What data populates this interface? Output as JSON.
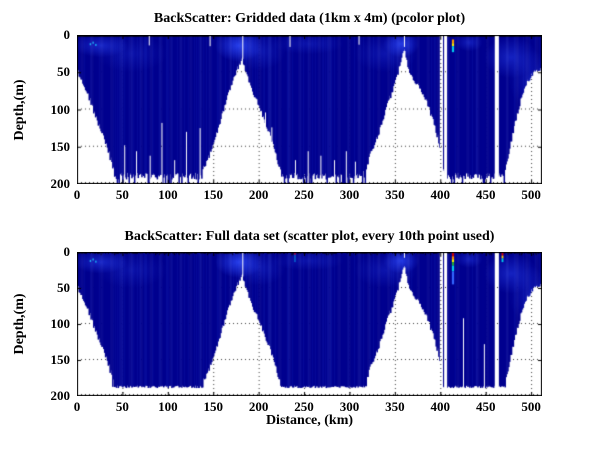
{
  "figure": {
    "background": "#ffffff"
  },
  "chart_data": {
    "plots": [
      {
        "name": "gridded",
        "type": "heatmap",
        "render_style": "pcolor",
        "title": "BackScatter: Gridded data (1km x 4m) (pcolor plot)",
        "xlabel": "",
        "ylabel": "Depth,(m)",
        "xlim": [
          0,
          512
        ],
        "ylim": [
          0,
          200
        ],
        "y_direction": "down",
        "xticks": [
          0,
          50,
          100,
          150,
          200,
          250,
          300,
          350,
          400,
          450,
          500
        ],
        "yticks": [
          0,
          50,
          100,
          150,
          200
        ],
        "grid": "dotted"
      },
      {
        "name": "full",
        "type": "scatter",
        "title": "BackScatter: Full data set (scatter plot, every 10th point used)",
        "xlabel": "Distance, (km)",
        "ylabel": "Depth,(m)",
        "xlim": [
          0,
          512
        ],
        "ylim": [
          0,
          200
        ],
        "y_direction": "down",
        "xticks": [
          0,
          50,
          100,
          150,
          200,
          250,
          300,
          350,
          400,
          450,
          500
        ],
        "yticks": [
          0,
          50,
          100,
          150,
          200
        ],
        "grid": "dotted"
      }
    ],
    "x_unit": "km",
    "y_unit": "m",
    "seafloor_profile_km_depth": [
      [
        0,
        46
      ],
      [
        3,
        55
      ],
      [
        6,
        60
      ],
      [
        10,
        72
      ],
      [
        14,
        86
      ],
      [
        18,
        100
      ],
      [
        22,
        114
      ],
      [
        26,
        127
      ],
      [
        30,
        140
      ],
      [
        34,
        154
      ],
      [
        38,
        170
      ],
      [
        42,
        186
      ],
      [
        45,
        193
      ],
      [
        48,
        190
      ],
      [
        60,
        191
      ],
      [
        75,
        189
      ],
      [
        90,
        192
      ],
      [
        105,
        190
      ],
      [
        120,
        191
      ],
      [
        136,
        190
      ],
      [
        140,
        178
      ],
      [
        144,
        166
      ],
      [
        148,
        155
      ],
      [
        152,
        140
      ],
      [
        156,
        124
      ],
      [
        160,
        107
      ],
      [
        164,
        90
      ],
      [
        168,
        74
      ],
      [
        172,
        60
      ],
      [
        176,
        47
      ],
      [
        179,
        38
      ],
      [
        182,
        32
      ],
      [
        184,
        40
      ],
      [
        187,
        52
      ],
      [
        190,
        62
      ],
      [
        193,
        72
      ],
      [
        196,
        82
      ],
      [
        200,
        93
      ],
      [
        204,
        105
      ],
      [
        208,
        118
      ],
      [
        212,
        132
      ],
      [
        216,
        147
      ],
      [
        220,
        163
      ],
      [
        223,
        178
      ],
      [
        226,
        190
      ],
      [
        240,
        191
      ],
      [
        260,
        190
      ],
      [
        280,
        192
      ],
      [
        300,
        190
      ],
      [
        313,
        191
      ],
      [
        317,
        182
      ],
      [
        321,
        168
      ],
      [
        325,
        155
      ],
      [
        329,
        142
      ],
      [
        333,
        128
      ],
      [
        337,
        112
      ],
      [
        341,
        97
      ],
      [
        345,
        83
      ],
      [
        349,
        68
      ],
      [
        353,
        52
      ],
      [
        356,
        38
      ],
      [
        359,
        22
      ],
      [
        360,
        16
      ],
      [
        362,
        26
      ],
      [
        365,
        42
      ],
      [
        368,
        52
      ],
      [
        371,
        58
      ],
      [
        374,
        64
      ],
      [
        378,
        72
      ],
      [
        382,
        82
      ],
      [
        386,
        93
      ],
      [
        390,
        106
      ],
      [
        394,
        122
      ],
      [
        398,
        140
      ],
      [
        401,
        158
      ],
      [
        403,
        172
      ],
      [
        405,
        190
      ],
      [
        408,
        191
      ],
      [
        420,
        190
      ],
      [
        435,
        191
      ],
      [
        450,
        190
      ],
      [
        458,
        191
      ],
      [
        465,
        192
      ],
      [
        469,
        190
      ],
      [
        472,
        176
      ],
      [
        476,
        155
      ],
      [
        480,
        132
      ],
      [
        484,
        110
      ],
      [
        488,
        90
      ],
      [
        492,
        74
      ],
      [
        496,
        62
      ],
      [
        500,
        55
      ],
      [
        503,
        50
      ],
      [
        506,
        47
      ],
      [
        509,
        50
      ],
      [
        512,
        44
      ]
    ],
    "basin_floor_depth_m": {
      "pcolor": 190,
      "scatter": 188
    },
    "data_gaps_km": [
      [
        399.5,
        403
      ],
      [
        404.2,
        407.5
      ],
      [
        460,
        464.5
      ]
    ],
    "dropout_columns": {
      "pcolor": [
        [
          52,
          148
        ],
        [
          65,
          156
        ],
        [
          80,
          162
        ],
        [
          93,
          118
        ],
        [
          107,
          168
        ],
        [
          120,
          130
        ],
        [
          135,
          125
        ],
        [
          207,
          104
        ],
        [
          214,
          124
        ],
        [
          240,
          168
        ],
        [
          254,
          156
        ],
        [
          268,
          162
        ],
        [
          283,
          168
        ],
        [
          296,
          156
        ],
        [
          306,
          170
        ],
        [
          482,
          116
        ]
      ],
      "scatter": [
        [
          425,
          92
        ],
        [
          448,
          128
        ]
      ]
    },
    "surface_gap_ticks_km": {
      "pcolor": [
        [
          79,
          14
        ],
        [
          146,
          15
        ],
        [
          234,
          16
        ],
        [
          310,
          13
        ],
        [
          182,
          32
        ],
        [
          360,
          16
        ]
      ],
      "scatter": [
        [
          182,
          34
        ],
        [
          360,
          8
        ]
      ]
    },
    "glow_patches": [
      [
        26,
        14,
        30,
        16,
        0.5
      ],
      [
        60,
        25,
        40,
        25,
        0.22
      ],
      [
        178,
        14,
        26,
        22,
        0.8
      ],
      [
        200,
        22,
        30,
        25,
        0.3
      ],
      [
        255,
        12,
        40,
        14,
        0.25
      ],
      [
        357,
        12,
        20,
        18,
        0.75
      ],
      [
        340,
        25,
        35,
        25,
        0.28
      ],
      [
        432,
        10,
        15,
        12,
        0.4
      ],
      [
        478,
        30,
        30,
        28,
        0.45
      ],
      [
        500,
        60,
        25,
        40,
        0.3
      ]
    ],
    "cyan_specks_km_depth": [
      [
        14,
        11
      ],
      [
        17,
        9
      ],
      [
        20,
        12
      ]
    ],
    "backscatter_column": {
      "km": 414,
      "width_km": 2.4,
      "pcolor_layers": [
        [
          "#ff9900",
          6,
          11
        ],
        [
          "#ffee00",
          11,
          15
        ],
        [
          "#00ccee",
          15,
          23
        ]
      ],
      "scatter_layers": [
        [
          "#cc0000",
          0,
          6
        ],
        [
          "#ff8800",
          6,
          10
        ],
        [
          "#ffee00",
          10,
          14
        ],
        [
          "#22aa33",
          14,
          19
        ],
        [
          "#00ccee",
          19,
          27
        ],
        [
          "#3366ff",
          27,
          45
        ]
      ]
    },
    "surface_events": [
      {
        "plot": "scatter",
        "km": 240,
        "width_km": 1.5,
        "layers": [
          [
            "#cc0044",
            0,
            4
          ],
          [
            "rgba(0,190,255,0.55)",
            4,
            14
          ]
        ]
      },
      {
        "plot": "scatter",
        "km": 468.5,
        "width_km": 2.0,
        "layers": [
          [
            "#dd0000",
            0,
            5
          ],
          [
            "#ffcc00",
            5,
            9
          ],
          [
            "#00ccee",
            9,
            14
          ]
        ]
      }
    ],
    "colors": {
      "deep_blue": "#00008f",
      "glow_blue": "#2e4bff",
      "surface_dark": "#000022",
      "grid": "#3a3a3a"
    }
  }
}
